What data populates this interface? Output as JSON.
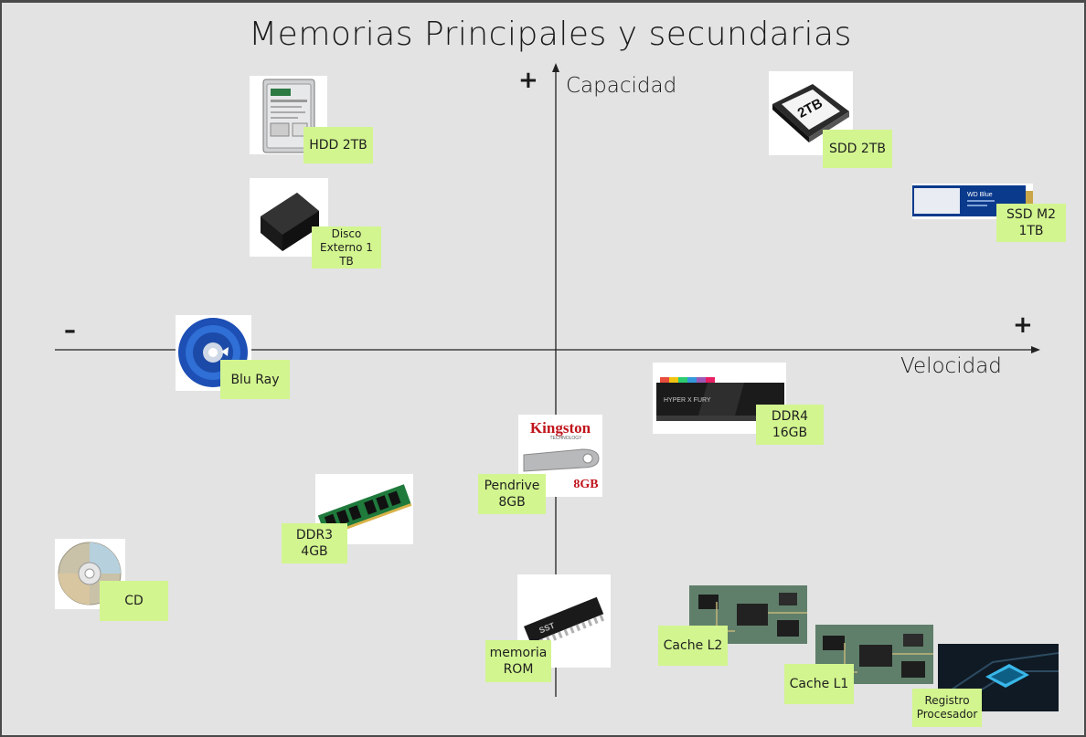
{
  "title": "Memorias Principales y secundarias",
  "axes": {
    "vertical": {
      "label": "Capacidad",
      "positive": "+"
    },
    "horizontal": {
      "label": "Velocidad",
      "negative": "–",
      "positive": "+"
    }
  },
  "items": {
    "hdd": {
      "label": "HDD 2TB",
      "icon": "hard-drive-icon"
    },
    "external_disk": {
      "label": "Disco\nExterno 1 TB",
      "icon": "external-disk-icon"
    },
    "ssd": {
      "label": "SDD 2TB",
      "icon": "ssd-icon",
      "image_text": "2TB"
    },
    "ssd_m2": {
      "label": "SSD M2\n1TB",
      "icon": "m2-ssd-icon",
      "image_text": "WD Blue"
    },
    "bluray": {
      "label": "Blu Ray",
      "icon": "bluray-disc-icon"
    },
    "ddr4": {
      "label": "DDR4\n16GB",
      "icon": "ram-ddr4-icon",
      "image_text": "HYPER X   FURY"
    },
    "pendrive": {
      "label": "Pendrive\n8GB",
      "icon": "usb-drive-icon",
      "brand_text": "Kingston",
      "brand_sub": "TECHNOLOGY",
      "size_text": "8GB"
    },
    "ddr3": {
      "label": "DDR3\n4GB",
      "icon": "ram-ddr3-icon"
    },
    "cd": {
      "label": "CD",
      "icon": "cd-disc-icon"
    },
    "rom": {
      "label": "memoria\nROM",
      "icon": "rom-chip-icon",
      "image_text": "SST"
    },
    "cache_l2": {
      "label": "Cache L2",
      "icon": "circuit-board-icon"
    },
    "cache_l1": {
      "label": "Cache L1",
      "icon": "circuit-board-icon"
    },
    "registro": {
      "label": "Registro\nProcesador",
      "icon": "processor-icon"
    }
  },
  "colors": {
    "note": "#d2f58f",
    "background": "#e3e3e3",
    "axis": "#222222"
  }
}
